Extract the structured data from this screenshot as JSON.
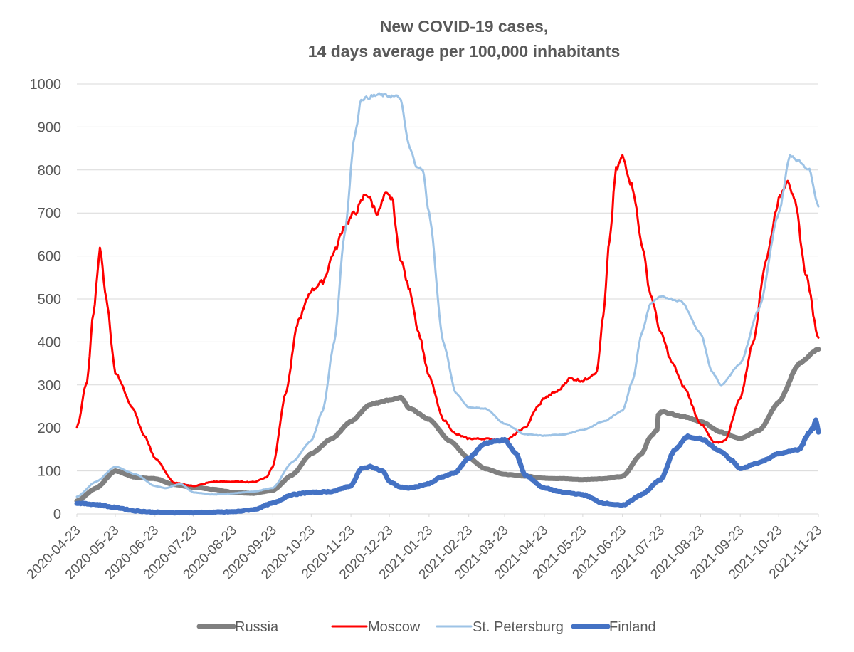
{
  "chart_data": {
    "type": "line",
    "title": [
      "New COVID-19 cases,",
      "14 days average per 100,000 inhabitants"
    ],
    "xlabel": "",
    "ylabel": "",
    "ylim": [
      0,
      1000
    ],
    "yticks": [
      0,
      100,
      200,
      300,
      400,
      500,
      600,
      700,
      800,
      900,
      1000
    ],
    "xlim": [
      "2020-04-23",
      "2021-11-23"
    ],
    "categories": [
      "2020-04-23",
      "2020-05-23",
      "2020-06-23",
      "2020-07-23",
      "2020-08-23",
      "2020-09-23",
      "2020-10-23",
      "2020-11-23",
      "2020-12-23",
      "2021-01-23",
      "2021-02-23",
      "2021-03-23",
      "2021-04-23",
      "2021-05-23",
      "2021-06-23",
      "2021-07-23",
      "2021-08-23",
      "2021-09-23",
      "2021-10-23",
      "2021-11-23"
    ],
    "grid": true,
    "legend_position": "bottom",
    "series": [
      {
        "name": "Russia",
        "color": "#808080",
        "width": 7,
        "points": [
          [
            "2020-04-23",
            30
          ],
          [
            "2020-05-08",
            60
          ],
          [
            "2020-05-23",
            100
          ],
          [
            "2020-06-08",
            85
          ],
          [
            "2020-06-23",
            82
          ],
          [
            "2020-07-08",
            68
          ],
          [
            "2020-07-23",
            62
          ],
          [
            "2020-08-08",
            57
          ],
          [
            "2020-08-23",
            50
          ],
          [
            "2020-09-08",
            48
          ],
          [
            "2020-09-23",
            55
          ],
          [
            "2020-10-08",
            90
          ],
          [
            "2020-10-23",
            140
          ],
          [
            "2020-11-08",
            175
          ],
          [
            "2020-11-23",
            215
          ],
          [
            "2020-12-08",
            255
          ],
          [
            "2020-12-23",
            265
          ],
          [
            "2021-01-01",
            270
          ],
          [
            "2021-01-08",
            245
          ],
          [
            "2021-01-23",
            220
          ],
          [
            "2021-02-08",
            170
          ],
          [
            "2021-02-23",
            130
          ],
          [
            "2021-03-08",
            105
          ],
          [
            "2021-03-23",
            92
          ],
          [
            "2021-04-08",
            88
          ],
          [
            "2021-04-23",
            83
          ],
          [
            "2021-05-08",
            82
          ],
          [
            "2021-05-23",
            80
          ],
          [
            "2021-06-08",
            82
          ],
          [
            "2021-06-23",
            87
          ],
          [
            "2021-07-08",
            140
          ],
          [
            "2021-07-15",
            180
          ],
          [
            "2021-07-20",
            195
          ],
          [
            "2021-07-21",
            230
          ],
          [
            "2021-07-23",
            238
          ],
          [
            "2021-08-08",
            228
          ],
          [
            "2021-08-23",
            215
          ],
          [
            "2021-09-08",
            190
          ],
          [
            "2021-09-23",
            175
          ],
          [
            "2021-10-08",
            195
          ],
          [
            "2021-10-23",
            260
          ],
          [
            "2021-11-08",
            350
          ],
          [
            "2021-11-23",
            383
          ]
        ]
      },
      {
        "name": "Moscow",
        "color": "#ff0000",
        "width": 3,
        "points": [
          [
            "2020-04-23",
            200
          ],
          [
            "2020-05-01",
            310
          ],
          [
            "2020-05-06",
            470
          ],
          [
            "2020-05-11",
            615
          ],
          [
            "2020-05-16",
            500
          ],
          [
            "2020-05-23",
            330
          ],
          [
            "2020-06-05",
            250
          ],
          [
            "2020-06-15",
            180
          ],
          [
            "2020-06-23",
            130
          ],
          [
            "2020-07-08",
            72
          ],
          [
            "2020-07-23",
            65
          ],
          [
            "2020-08-08",
            75
          ],
          [
            "2020-08-23",
            75
          ],
          [
            "2020-09-08",
            74
          ],
          [
            "2020-09-18",
            85
          ],
          [
            "2020-09-23",
            110
          ],
          [
            "2020-10-03",
            280
          ],
          [
            "2020-10-13",
            450
          ],
          [
            "2020-10-23",
            520
          ],
          [
            "2020-11-01",
            540
          ],
          [
            "2020-11-10",
            610
          ],
          [
            "2020-11-18",
            670
          ],
          [
            "2020-11-26",
            700
          ],
          [
            "2020-12-05",
            745
          ],
          [
            "2020-12-14",
            700
          ],
          [
            "2020-12-20",
            742
          ],
          [
            "2020-12-25",
            735
          ],
          [
            "2020-12-31",
            600
          ],
          [
            "2021-01-08",
            520
          ],
          [
            "2021-01-15",
            420
          ],
          [
            "2021-01-23",
            320
          ],
          [
            "2021-02-03",
            220
          ],
          [
            "2021-02-13",
            185
          ],
          [
            "2021-02-23",
            175
          ],
          [
            "2021-03-08",
            175
          ],
          [
            "2021-03-23",
            170
          ],
          [
            "2021-04-08",
            200
          ],
          [
            "2021-04-18",
            250
          ],
          [
            "2021-04-23",
            270
          ],
          [
            "2021-05-03",
            285
          ],
          [
            "2021-05-13",
            315
          ],
          [
            "2021-05-23",
            310
          ],
          [
            "2021-06-03",
            330
          ],
          [
            "2021-06-08",
            460
          ],
          [
            "2021-06-13",
            640
          ],
          [
            "2021-06-18",
            800
          ],
          [
            "2021-06-23",
            830
          ],
          [
            "2021-07-01",
            760
          ],
          [
            "2021-07-08",
            630
          ],
          [
            "2021-07-15",
            510
          ],
          [
            "2021-07-23",
            420
          ],
          [
            "2021-08-01",
            350
          ],
          [
            "2021-08-10",
            295
          ],
          [
            "2021-08-23",
            210
          ],
          [
            "2021-09-03",
            165
          ],
          [
            "2021-09-11",
            170
          ],
          [
            "2021-09-23",
            270
          ],
          [
            "2021-10-03",
            400
          ],
          [
            "2021-10-13",
            590
          ],
          [
            "2021-10-23",
            730
          ],
          [
            "2021-10-30",
            780
          ],
          [
            "2021-11-05",
            720
          ],
          [
            "2021-11-13",
            560
          ],
          [
            "2021-11-23",
            410
          ]
        ]
      },
      {
        "name": "St. Petersburg",
        "color": "#9dc3e6",
        "width": 3,
        "points": [
          [
            "2020-04-23",
            40
          ],
          [
            "2020-05-08",
            75
          ],
          [
            "2020-05-23",
            110
          ],
          [
            "2020-06-08",
            92
          ],
          [
            "2020-06-23",
            65
          ],
          [
            "2020-07-01",
            60
          ],
          [
            "2020-07-13",
            70
          ],
          [
            "2020-07-23",
            50
          ],
          [
            "2020-08-08",
            45
          ],
          [
            "2020-08-23",
            48
          ],
          [
            "2020-09-08",
            52
          ],
          [
            "2020-09-23",
            60
          ],
          [
            "2020-10-08",
            120
          ],
          [
            "2020-10-23",
            170
          ],
          [
            "2020-11-01",
            240
          ],
          [
            "2020-11-10",
            400
          ],
          [
            "2020-11-18",
            650
          ],
          [
            "2020-11-26",
            880
          ],
          [
            "2020-12-01",
            965
          ],
          [
            "2020-12-15",
            975
          ],
          [
            "2020-12-31",
            970
          ],
          [
            "2021-01-08",
            850
          ],
          [
            "2021-01-13",
            810
          ],
          [
            "2021-01-18",
            800
          ],
          [
            "2021-01-23",
            700
          ],
          [
            "2021-02-03",
            400
          ],
          [
            "2021-02-13",
            280
          ],
          [
            "2021-02-23",
            248
          ],
          [
            "2021-03-08",
            245
          ],
          [
            "2021-03-23",
            210
          ],
          [
            "2021-04-08",
            185
          ],
          [
            "2021-04-23",
            182
          ],
          [
            "2021-05-08",
            185
          ],
          [
            "2021-05-23",
            195
          ],
          [
            "2021-06-08",
            215
          ],
          [
            "2021-06-23",
            240
          ],
          [
            "2021-07-01",
            310
          ],
          [
            "2021-07-08",
            420
          ],
          [
            "2021-07-15",
            490
          ],
          [
            "2021-07-23",
            505
          ],
          [
            "2021-08-08",
            495
          ],
          [
            "2021-08-23",
            420
          ],
          [
            "2021-09-01",
            330
          ],
          [
            "2021-09-08",
            300
          ],
          [
            "2021-09-23",
            350
          ],
          [
            "2021-10-08",
            480
          ],
          [
            "2021-10-23",
            700
          ],
          [
            "2021-11-01",
            835
          ],
          [
            "2021-11-08",
            820
          ],
          [
            "2021-11-16",
            800
          ],
          [
            "2021-11-23",
            715
          ]
        ]
      },
      {
        "name": "Finland",
        "color": "#4472c4",
        "width": 7,
        "points": [
          [
            "2020-04-23",
            25
          ],
          [
            "2020-05-08",
            22
          ],
          [
            "2020-05-23",
            15
          ],
          [
            "2020-06-08",
            7
          ],
          [
            "2020-06-23",
            4
          ],
          [
            "2020-07-08",
            3
          ],
          [
            "2020-07-23",
            3
          ],
          [
            "2020-08-08",
            4
          ],
          [
            "2020-08-23",
            5
          ],
          [
            "2020-09-08",
            10
          ],
          [
            "2020-09-23",
            25
          ],
          [
            "2020-10-08",
            45
          ],
          [
            "2020-10-23",
            50
          ],
          [
            "2020-11-08",
            52
          ],
          [
            "2020-11-23",
            65
          ],
          [
            "2020-12-01",
            105
          ],
          [
            "2020-12-08",
            110
          ],
          [
            "2020-12-18",
            100
          ],
          [
            "2020-12-23",
            75
          ],
          [
            "2021-01-01",
            62
          ],
          [
            "2021-01-08",
            60
          ],
          [
            "2021-01-23",
            70
          ],
          [
            "2021-02-01",
            85
          ],
          [
            "2021-02-12",
            95
          ],
          [
            "2021-02-23",
            130
          ],
          [
            "2021-03-08",
            165
          ],
          [
            "2021-03-23",
            172
          ],
          [
            "2021-04-01",
            140
          ],
          [
            "2021-04-08",
            90
          ],
          [
            "2021-04-23",
            60
          ],
          [
            "2021-05-08",
            50
          ],
          [
            "2021-05-23",
            45
          ],
          [
            "2021-06-08",
            25
          ],
          [
            "2021-06-23",
            20
          ],
          [
            "2021-07-08",
            45
          ],
          [
            "2021-07-23",
            80
          ],
          [
            "2021-08-03",
            150
          ],
          [
            "2021-08-13",
            180
          ],
          [
            "2021-08-23",
            175
          ],
          [
            "2021-09-08",
            145
          ],
          [
            "2021-09-16",
            125
          ],
          [
            "2021-09-23",
            105
          ],
          [
            "2021-10-08",
            120
          ],
          [
            "2021-10-23",
            140
          ],
          [
            "2021-11-08",
            150
          ],
          [
            "2021-11-16",
            190
          ],
          [
            "2021-11-19",
            200
          ],
          [
            "2021-11-21",
            220
          ],
          [
            "2021-11-23",
            190
          ]
        ]
      }
    ]
  }
}
